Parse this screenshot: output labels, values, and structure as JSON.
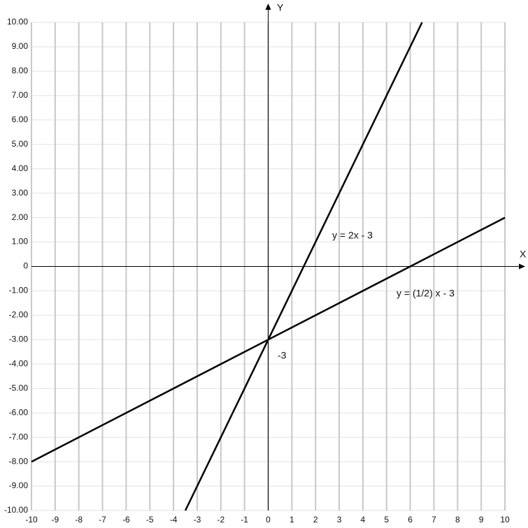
{
  "chart_data": {
    "type": "line",
    "x_label": "X",
    "y_label": "Y",
    "xlim": [
      -10,
      10
    ],
    "ylim": [
      -10,
      10
    ],
    "xticks": [
      -10,
      -9,
      -8,
      -7,
      -6,
      -5,
      -4,
      -3,
      -2,
      -1,
      0,
      1,
      2,
      3,
      4,
      5,
      6,
      7,
      8,
      9,
      10
    ],
    "yticks": [
      {
        "value": 10,
        "label": "10.00"
      },
      {
        "value": 9,
        "label": "9.00"
      },
      {
        "value": 8,
        "label": "8.00"
      },
      {
        "value": 7,
        "label": "7.00"
      },
      {
        "value": 6,
        "label": "6.00"
      },
      {
        "value": 5,
        "label": "5.00"
      },
      {
        "value": 4,
        "label": "4.00"
      },
      {
        "value": 3,
        "label": "3.00"
      },
      {
        "value": 2,
        "label": "2.00"
      },
      {
        "value": 1,
        "label": "1.00"
      },
      0,
      {
        "value": -1,
        "label": "-1.00"
      },
      {
        "value": -2,
        "label": "-2.00"
      },
      {
        "value": -3,
        "label": "-3.00"
      },
      {
        "value": -4,
        "label": "-4.00"
      },
      {
        "value": -5,
        "label": "-5.00"
      },
      {
        "value": -6,
        "label": "-6.00"
      },
      {
        "value": -7,
        "label": "-7.00"
      },
      {
        "value": -8,
        "label": "-8.00"
      },
      {
        "value": -9,
        "label": "-9.00"
      },
      {
        "value": -10,
        "label": "-10.00"
      }
    ],
    "grid": true,
    "series": [
      {
        "name": "y = 2x - 3",
        "color": "#000000",
        "x": [
          -3.5,
          6.5
        ],
        "values": [
          -10,
          10
        ]
      },
      {
        "name": "y = (1/2) x - 3",
        "color": "#000000",
        "x": [
          -10,
          10
        ],
        "values": [
          -8,
          2
        ]
      }
    ],
    "annotations": [
      "-3"
    ]
  }
}
